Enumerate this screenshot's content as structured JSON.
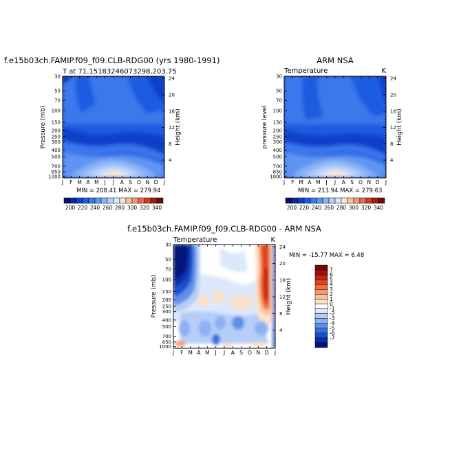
{
  "chart_data": [
    {
      "type": "heatmap",
      "title": "f.e15b03ch.FAMIP.f09_f09.CLB-RDG00 (yrs 1980-1991)",
      "subtitle_left": "T at 71.1518324607329 8,203.75",
      "subtitle_left_exact": "T at 71.15183246073298,203.75",
      "subtitle_right": "",
      "ylabel": "Pressure (mb)",
      "ylabel_right": "Height (km)",
      "stats": "MIN = 208.41  MAX = 279.94",
      "months": [
        "J",
        "F",
        "M",
        "A",
        "M",
        "J",
        "J",
        "A",
        "S",
        "O",
        "N",
        "D",
        "J"
      ],
      "pressure_ticks": [
        "30",
        "50",
        "70",
        "100",
        "150",
        "200",
        "250",
        "300",
        "400",
        "500",
        "700",
        "850",
        "1000"
      ],
      "height_ticks": [
        "24",
        "20",
        "16",
        "12",
        "8",
        "4"
      ],
      "colorbar": {
        "labels": [
          "200",
          "220",
          "240",
          "260",
          "280",
          "300",
          "320",
          "340"
        ],
        "colors": [
          "#05106e",
          "#0a2a9e",
          "#1040c8",
          "#1f5be0",
          "#3a78ec",
          "#5e94f2",
          "#88b3f6",
          "#b4cff8",
          "#d9e6fb",
          "#fbe3cf",
          "#f9c3a0",
          "#f49a73",
          "#e96a48",
          "#d23d22",
          "#a61b0e",
          "#6e0a06"
        ]
      }
    },
    {
      "type": "heatmap",
      "title": "ARM NSA",
      "subtitle_left": "Temperature",
      "subtitle_right": "K",
      "ylabel": "pressure  level",
      "ylabel_right": "Height (km)",
      "stats": "MIN = 213.94  MAX = 279.63",
      "months": [
        "J",
        "F",
        "M",
        "A",
        "M",
        "J",
        "J",
        "A",
        "S",
        "O",
        "N",
        "D",
        "J"
      ],
      "pressure_ticks": [
        "30",
        "50",
        "70",
        "100",
        "150",
        "200",
        "250",
        "300",
        "400",
        "500",
        "700",
        "850",
        "1000"
      ],
      "height_ticks": [
        "24",
        "20",
        "16",
        "12",
        "8",
        "4"
      ],
      "colorbar": {
        "labels": [
          "200",
          "220",
          "240",
          "260",
          "280",
          "300",
          "320",
          "340"
        ],
        "colors": [
          "#05106e",
          "#0a2a9e",
          "#1040c8",
          "#1f5be0",
          "#3a78ec",
          "#5e94f2",
          "#88b3f6",
          "#b4cff8",
          "#d9e6fb",
          "#fbe3cf",
          "#f9c3a0",
          "#f49a73",
          "#e96a48",
          "#d23d22",
          "#a61b0e",
          "#6e0a06"
        ]
      }
    },
    {
      "type": "heatmap",
      "title": "f.e15b03ch.FAMIP.f09_f09.CLB-RDG00  - ARM NSA",
      "subtitle_left": "Temperature",
      "subtitle_right": "K",
      "ylabel": "Pressure (mb)",
      "ylabel_right": "Height (km)",
      "stats": "MIN = -15.77  MAX =    6.48",
      "months": [
        "J",
        "F",
        "M",
        "A",
        "M",
        "J",
        "J",
        "A",
        "S",
        "O",
        "N",
        "D",
        "J"
      ],
      "pressure_ticks": [
        "30",
        "50",
        "70",
        "100",
        "150",
        "200",
        "250",
        "300",
        "400",
        "500",
        "700",
        "850",
        "1000"
      ],
      "height_ticks": [
        "24",
        "20",
        "16",
        "12",
        "8",
        "4"
      ],
      "colorbar": {
        "labels": [
          "7",
          "6",
          "5",
          "4",
          "3",
          "2",
          "1",
          "0",
          "-1",
          "-2",
          "-3",
          "-4",
          "-5",
          "-6",
          "-7"
        ],
        "colors": [
          "#7a0403",
          "#a50f0a",
          "#c8230f",
          "#e0451f",
          "#ef6f3e",
          "#f69a6d",
          "#f9c29d",
          "#fbe2cb",
          "#ffffff",
          "#dce8fb",
          "#b6cdf7",
          "#8cb0f2",
          "#5e8fea",
          "#3a6fde",
          "#1d4fcc",
          "#0a2ea8",
          "#04137a"
        ]
      }
    }
  ]
}
